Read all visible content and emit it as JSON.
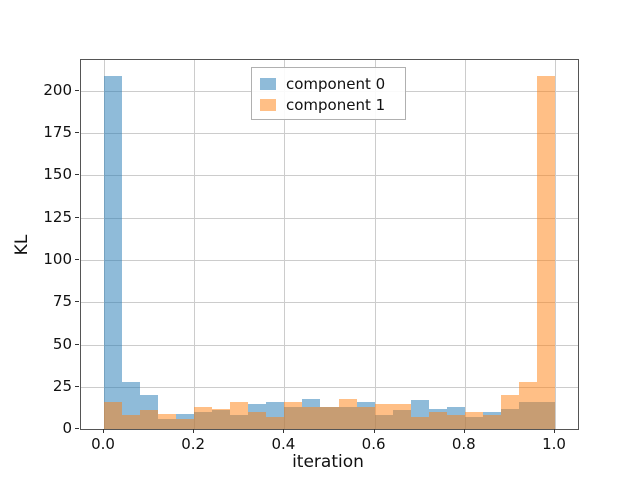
{
  "axes": {
    "xlabel": "iteration",
    "ylabel": "KL",
    "xtick_labels": [
      "0.0",
      "0.2",
      "0.4",
      "0.6",
      "0.8",
      "1.0"
    ],
    "ytick_labels": [
      "0",
      "25",
      "50",
      "75",
      "100",
      "125",
      "150",
      "175",
      "200"
    ]
  },
  "legend": {
    "items": [
      {
        "label": "component 0",
        "color": "#1f77b4"
      },
      {
        "label": "component 1",
        "color": "#ff7f0e"
      }
    ]
  },
  "colors": {
    "component0": "#1f77b4",
    "component1": "#ff7f0e",
    "bar_alpha": 0.5,
    "grid": "#cccccc",
    "spine": "#555555"
  },
  "chart_data": {
    "type": "bar",
    "subtype": "overlapping-histograms",
    "title": "",
    "xlabel": "iteration",
    "ylabel": "KL",
    "xlim": [
      -0.051,
      1.051
    ],
    "ylim": [
      0,
      218.3
    ],
    "xticks": [
      0.0,
      0.2,
      0.4,
      0.6,
      0.8,
      1.0
    ],
    "yticks": [
      0,
      25,
      50,
      75,
      100,
      125,
      150,
      175,
      200
    ],
    "grid": true,
    "legend_position": "upper center",
    "bin_edges": [
      0.0,
      0.04,
      0.08,
      0.12,
      0.16,
      0.2,
      0.24,
      0.28,
      0.32,
      0.36,
      0.4,
      0.44,
      0.48,
      0.52,
      0.56,
      0.6,
      0.64,
      0.68,
      0.72,
      0.76,
      0.8,
      0.84,
      0.88,
      0.92,
      0.96,
      1.0
    ],
    "series": [
      {
        "name": "component 0",
        "color": "#1f77b4",
        "alpha": 0.5,
        "values": [
          209,
          28,
          20,
          6,
          9,
          10,
          11,
          8,
          15,
          16,
          13,
          18,
          13,
          13,
          16,
          8,
          11,
          17,
          12,
          13,
          7,
          10,
          12,
          16,
          16
        ]
      },
      {
        "name": "component 1",
        "color": "#ff7f0e",
        "alpha": 0.5,
        "values": [
          16,
          8,
          11,
          9,
          6,
          13,
          12,
          16,
          10,
          7,
          16,
          13,
          13,
          18,
          13,
          15,
          15,
          7,
          10,
          8,
          10,
          8,
          20,
          28,
          209
        ]
      }
    ]
  }
}
